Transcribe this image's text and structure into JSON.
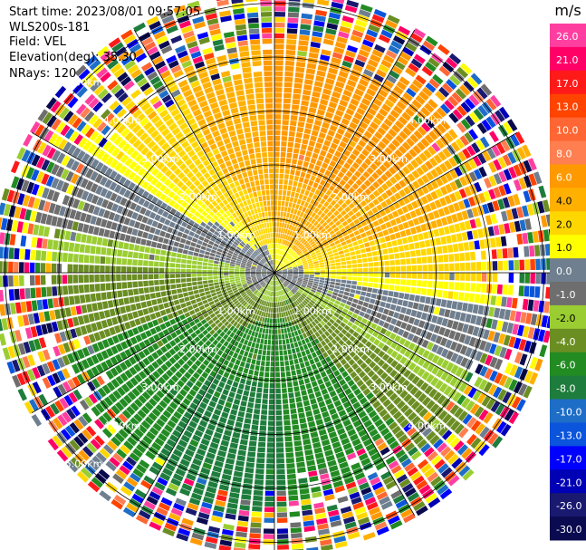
{
  "header": {
    "start_time": "Start time: 2023/08/01 09:57:05",
    "instrument": "WLS200s-181",
    "field": "Field: VEL",
    "elevation": "Elevation(deg): 35.30",
    "nrays": "NRays: 120"
  },
  "chart_data": {
    "type": "heatmap",
    "projection": "polar-ppi",
    "field": "VEL",
    "nrays": 120,
    "range_rings_km": [
      1.0,
      2.0,
      3.0,
      4.0,
      5.0
    ],
    "max_range_km": 5.2,
    "azimuth_lines_deg": [
      0,
      30,
      60,
      90,
      120,
      150,
      180,
      210,
      240,
      270,
      300,
      330
    ],
    "ring_labels": {
      "upper_left": [
        "1.00km",
        "2.00km",
        "3.00km",
        "4.00km",
        "5.00km"
      ],
      "upper_right": [
        "1.00km",
        "2.00km",
        "3.00km",
        "4.00km"
      ],
      "lower_left": [
        "1.00km",
        "2.00km",
        "3.00km",
        "4.00km",
        "5.00km"
      ],
      "lower_right": [
        "1.00km",
        "2.00km",
        "3.00km",
        "4.00km"
      ]
    },
    "colorbar": {
      "unit": "m/s",
      "ticks": [
        "26.0",
        "21.0",
        "17.0",
        "13.0",
        "10.0",
        "8.0",
        "6.0",
        "4.0",
        "2.0",
        "1.0",
        "0.0",
        "-1.0",
        "-2.0",
        "-4.0",
        "-6.0",
        "-8.0",
        "-10.0",
        "-13.0",
        "-17.0",
        "-21.0",
        "-26.0",
        "-30.0"
      ],
      "colors": [
        "#ff3fa0",
        "#ff0066",
        "#ff1a1a",
        "#ff4400",
        "#ff6633",
        "#ff7f50",
        "#ff9900",
        "#ffb000",
        "#ffd700",
        "#ffff00",
        "#6f7f8f",
        "#6e6e6e",
        "#9acd32",
        "#6b8e23",
        "#228b22",
        "#1e7d3c",
        "#1e6ec8",
        "#0a55dc",
        "#0000ff",
        "#0000b4",
        "#191970",
        "#0a0a50"
      ]
    },
    "velocity_pattern": {
      "near_positive_center_deg": 0,
      "near_positive_peak_ms": 8.0,
      "near_negative_center_deg": 180,
      "near_negative_peak_ms": -8.0,
      "noise_beyond_km": 4.3
    }
  }
}
